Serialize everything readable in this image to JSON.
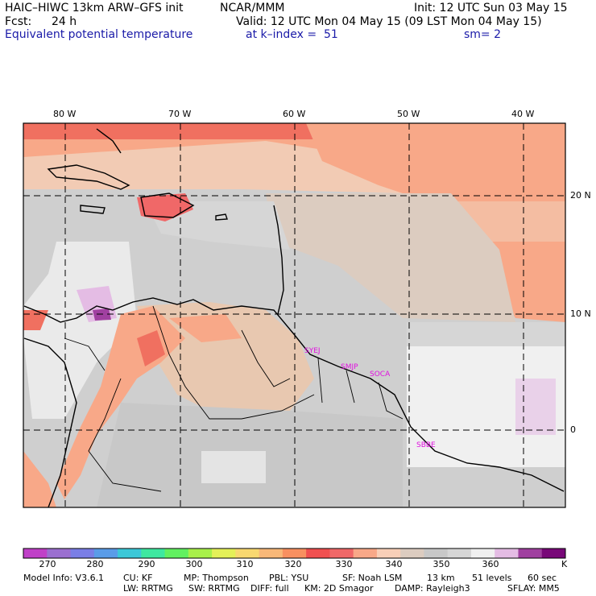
{
  "header": {
    "model": "HAIC–HIWC 13km ARW–GFS init",
    "org": "NCAR/MMM",
    "init": "Init: 12 UTC Sun 03 May 15",
    "fcst_label": "Fcst:",
    "fcst_value": "24 h",
    "valid": "Valid: 12 UTC Mon 04 May 15 (09 LST Mon 04 May 15)",
    "field": "Equivalent potential temperature",
    "level": "at k–index =  51",
    "smooth": "sm= 2"
  },
  "map": {
    "lon_labels": [
      "80 W",
      "70 W",
      "60 W",
      "50 W",
      "40 W"
    ],
    "lat_labels": [
      "20 N",
      "10 N",
      "0"
    ],
    "stations": [
      "SYEJ",
      "SMJP",
      "SOCA",
      "SBBE"
    ],
    "station_color": "#e010e0"
  },
  "colorbar": {
    "unit": "K",
    "tick_labels": [
      "270",
      "280",
      "290",
      "300",
      "310",
      "320",
      "330",
      "340",
      "350",
      "360"
    ],
    "colors": [
      "#c040c8",
      "#9b6fd0",
      "#7a7ee6",
      "#5a9ce8",
      "#3cc8d8",
      "#3ee8a0",
      "#62f060",
      "#a8f04a",
      "#e4f058",
      "#f8d870",
      "#f8b878",
      "#f89060",
      "#f05050",
      "#f06868",
      "#f8a888",
      "#f8cfb8",
      "#dcccc0",
      "#c8c8c8",
      "#d6d6d6",
      "#f0f0f0",
      "#e4bce4",
      "#a040a0",
      "#780878"
    ]
  },
  "footer": {
    "line1": [
      "Model Info: V3.6.1",
      "CU: KF",
      "MP: Thompson",
      "PBL: YSU",
      "SF: Noah LSM",
      "13 km",
      "51 levels",
      "60 sec"
    ],
    "line2": [
      "LW: RRTMG",
      "SW: RRTMG",
      "DIFF: full",
      "KM: 2D Smagor",
      "DAMP: Rayleigh3",
      "SFLAY: MM5"
    ]
  }
}
